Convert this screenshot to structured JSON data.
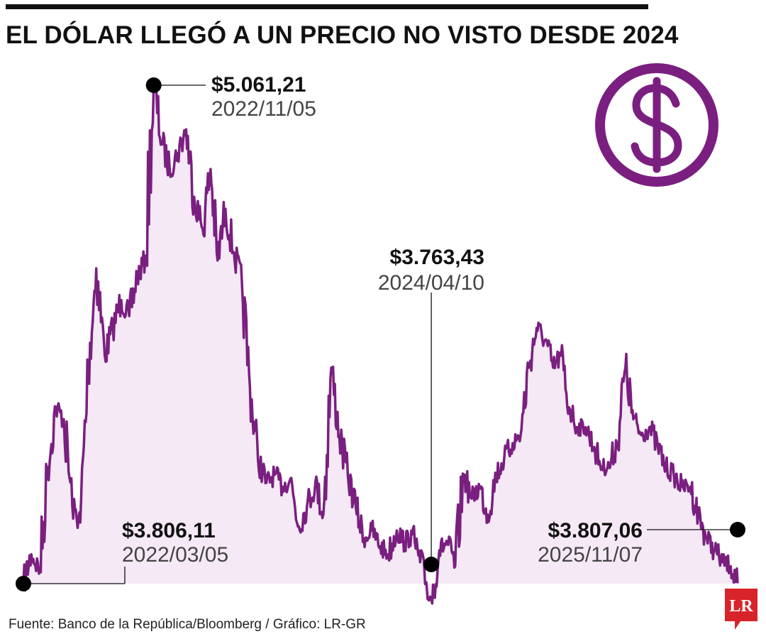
{
  "title": "EL DÓLAR LLEGÓ A UN PRECIO NO VISTO DESDE 2024",
  "source": "Fuente: Banco de la República/Bloomberg / Gráfico: LR-GR",
  "logo_text": "LR",
  "icon": "dollar-circle-icon",
  "colors": {
    "line": "#7a1f80",
    "fill": "#f4e9f5",
    "logo": "#d8232a",
    "marker": "#000000"
  },
  "chart_data": {
    "type": "area",
    "title": "EL DÓLAR LLEGÓ A UN PRECIO NO VISTO DESDE 2024",
    "xlabel": "",
    "ylabel": "",
    "grid": false,
    "legend": "none",
    "x_range": [
      "2022/03/05",
      "2025/11/07"
    ],
    "y_range": [
      3700,
      5100
    ],
    "annotations": [
      {
        "value": "$3.806,11",
        "date": "2022/03/05",
        "y": 3806.11
      },
      {
        "value": "$5.061,21",
        "date": "2022/11/05",
        "y": 5061.21
      },
      {
        "value": "$3.763,43",
        "date": "2024/04/10",
        "y": 3763.43
      },
      {
        "value": "$3.807,06",
        "date": "2025/11/07",
        "y": 3807.06
      }
    ],
    "series": [
      {
        "x": [
          "2022/03/05",
          "2022/03/20",
          "2022/04/05",
          "2022/04/20",
          "2022/05/05",
          "2022/05/20",
          "2022/06/05",
          "2022/06/20",
          "2022/07/05",
          "2022/07/20",
          "2022/08/05",
          "2022/08/20",
          "2022/09/05",
          "2022/09/20",
          "2022/10/05",
          "2022/10/20",
          "2022/11/05",
          "2022/11/20",
          "2022/12/05",
          "2022/12/20",
          "2023/01/05",
          "2023/01/20",
          "2023/02/05",
          "2023/02/20",
          "2023/03/05",
          "2023/03/20",
          "2023/04/05",
          "2023/04/20",
          "2023/05/05",
          "2023/05/20",
          "2023/06/05",
          "2023/06/20",
          "2023/07/05",
          "2023/07/20",
          "2023/08/05",
          "2023/08/20",
          "2023/09/05",
          "2023/09/20",
          "2023/10/05",
          "2023/10/20",
          "2023/11/05",
          "2023/11/20",
          "2023/12/05",
          "2023/12/20",
          "2024/01/05",
          "2024/01/20",
          "2024/02/05",
          "2024/02/20",
          "2024/03/05",
          "2024/03/20",
          "2024/04/10",
          "2024/04/25",
          "2024/05/10",
          "2024/05/25",
          "2024/06/10",
          "2024/06/25",
          "2024/07/10",
          "2024/07/25",
          "2024/08/10",
          "2024/08/25",
          "2024/09/10",
          "2024/09/25",
          "2024/10/10",
          "2024/10/25",
          "2024/11/10",
          "2024/11/25",
          "2024/12/10",
          "2024/12/25",
          "2025/01/10",
          "2025/01/25",
          "2025/02/10",
          "2025/02/25",
          "2025/03/10",
          "2025/03/25",
          "2025/04/10",
          "2025/04/25",
          "2025/05/10",
          "2025/05/25",
          "2025/06/10",
          "2025/06/25",
          "2025/07/10",
          "2025/07/25",
          "2025/08/10",
          "2025/08/25",
          "2025/09/10",
          "2025/09/25",
          "2025/10/10",
          "2025/10/25",
          "2025/11/07"
        ],
        "y": [
          3806.11,
          3880,
          3840,
          4100,
          4250,
          4220,
          4000,
          3960,
          4350,
          4600,
          4380,
          4450,
          4520,
          4480,
          4580,
          4620,
          5061.21,
          4920,
          4850,
          4890,
          4950,
          4780,
          4700,
          4850,
          4620,
          4750,
          4640,
          4560,
          4300,
          4120,
          4060,
          4080,
          4050,
          4070,
          3950,
          4000,
          4060,
          3980,
          4350,
          4180,
          4080,
          4000,
          3920,
          3940,
          3900,
          3880,
          3940,
          3910,
          3930,
          3860,
          3763.43,
          3890,
          3910,
          3850,
          4080,
          4020,
          4050,
          3980,
          4080,
          4120,
          4160,
          4180,
          4350,
          4450,
          4420,
          4350,
          4380,
          4250,
          4200,
          4200,
          4150,
          4100,
          4100,
          4160,
          4350,
          4220,
          4180,
          4200,
          4150,
          4100,
          4080,
          4050,
          4050,
          3980,
          3920,
          3890,
          3860,
          3850,
          3807.06
        ]
      }
    ]
  }
}
